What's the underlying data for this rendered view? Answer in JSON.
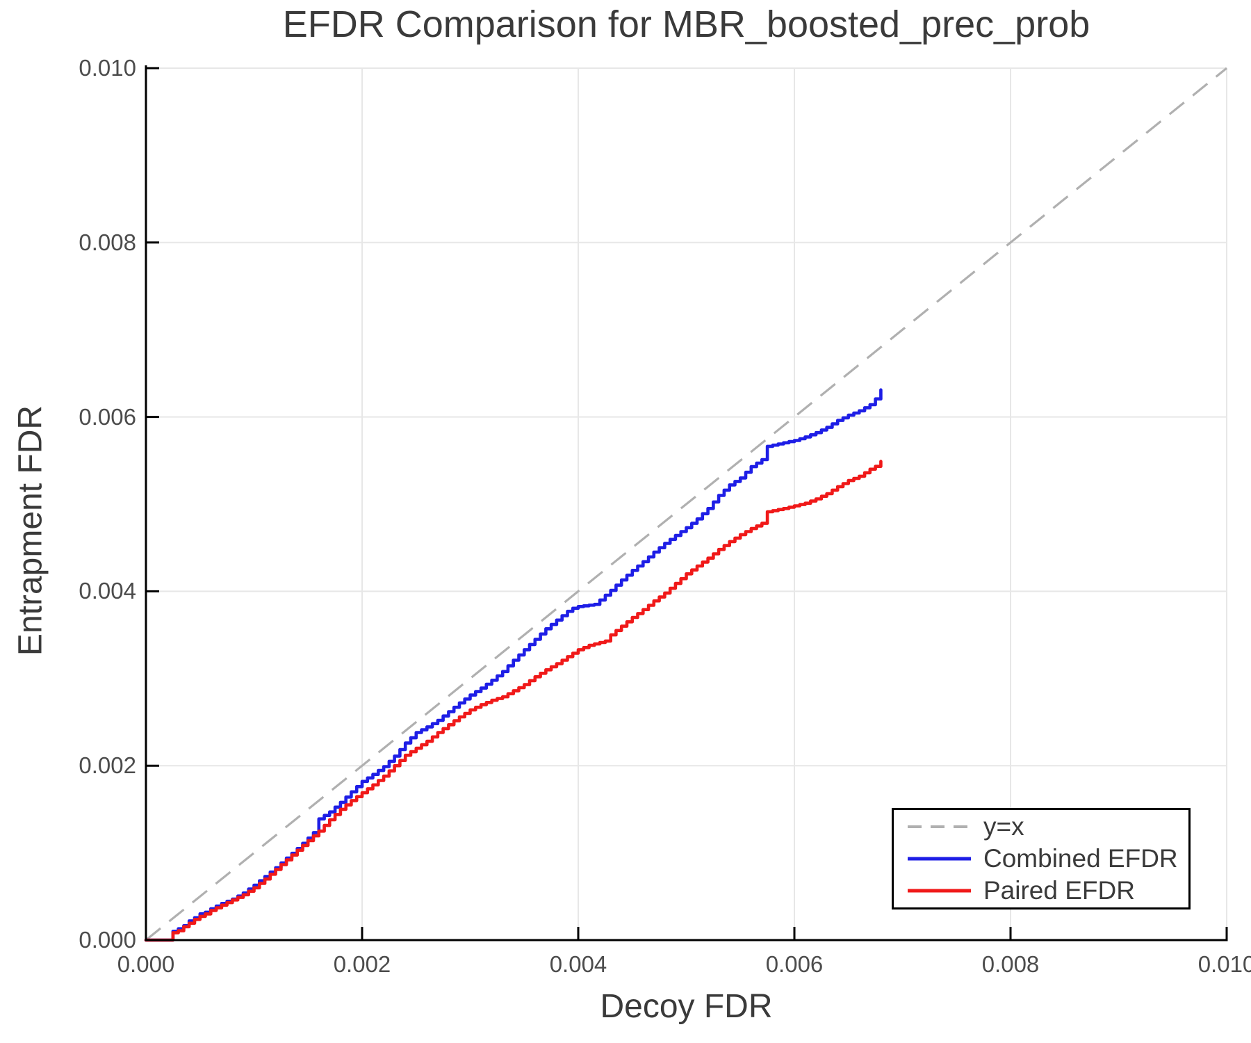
{
  "title": "EFDR Comparison for MBR_boosted_prec_prob",
  "chart_data": {
    "type": "line",
    "title": "EFDR Comparison for MBR_boosted_prec_prob",
    "xlabel": "Decoy FDR",
    "ylabel": "Entrapment FDR",
    "xlim": [
      0.0,
      0.01
    ],
    "ylim": [
      0.0,
      0.01
    ],
    "xticks": [
      "0.000",
      "0.002",
      "0.004",
      "0.006",
      "0.008",
      "0.010"
    ],
    "yticks": [
      "0.000",
      "0.002",
      "0.004",
      "0.006",
      "0.008",
      "0.010"
    ],
    "grid": true,
    "grid_color": "#e7e7e7",
    "spine_color": "#000000",
    "legend_position": "lower right",
    "reference_line": {
      "label": "y=x",
      "style": "dashed",
      "color": "#b0b0b0",
      "from": [
        0.0,
        0.0
      ],
      "to": [
        0.01,
        0.01
      ]
    },
    "series": [
      {
        "name": "Combined EFDR",
        "color": "#1e1ee6",
        "points": [
          [
            0.0,
            0.0
          ],
          [
            0.00021,
            0.0
          ],
          [
            0.00023,
            9e-05
          ],
          [
            0.0003,
            0.00013
          ],
          [
            0.00034,
            0.00013
          ],
          [
            0.00036,
            0.0002
          ],
          [
            0.00044,
            0.00024
          ],
          [
            0.00047,
            0.00029
          ],
          [
            0.00055,
            0.00032
          ],
          [
            0.0006,
            0.00036
          ],
          [
            0.0007,
            0.00042
          ],
          [
            0.0008,
            0.00047
          ],
          [
            0.0009,
            0.00054
          ],
          [
            0.001,
            0.00063
          ],
          [
            0.0011,
            0.00073
          ],
          [
            0.0012,
            0.00083
          ],
          [
            0.0013,
            0.00094
          ],
          [
            0.0014,
            0.00105
          ],
          [
            0.0015,
            0.00117
          ],
          [
            0.00158,
            0.00127
          ],
          [
            0.0016,
            0.00139
          ],
          [
            0.0017,
            0.00147
          ],
          [
            0.0018,
            0.00158
          ],
          [
            0.0019,
            0.0017
          ],
          [
            0.002,
            0.00182
          ],
          [
            0.0021,
            0.0019
          ],
          [
            0.0022,
            0.00199
          ],
          [
            0.0023,
            0.00211
          ],
          [
            0.0024,
            0.00226
          ],
          [
            0.0025,
            0.00238
          ],
          [
            0.00258,
            0.00243
          ],
          [
            0.0027,
            0.00252
          ],
          [
            0.0028,
            0.00262
          ],
          [
            0.0029,
            0.00272
          ],
          [
            0.003,
            0.00281
          ],
          [
            0.0031,
            0.00289
          ],
          [
            0.0032,
            0.00298
          ],
          [
            0.0033,
            0.00308
          ],
          [
            0.0034,
            0.00321
          ],
          [
            0.0035,
            0.00333
          ],
          [
            0.0036,
            0.00345
          ],
          [
            0.0037,
            0.00357
          ],
          [
            0.0038,
            0.00367
          ],
          [
            0.0039,
            0.00377
          ],
          [
            0.00397,
            0.00382
          ],
          [
            0.00415,
            0.00385
          ],
          [
            0.0042,
            0.0039
          ],
          [
            0.0043,
            0.00401
          ],
          [
            0.0044,
            0.00413
          ],
          [
            0.0045,
            0.00424
          ],
          [
            0.0046,
            0.00434
          ],
          [
            0.0047,
            0.00445
          ],
          [
            0.0048,
            0.00455
          ],
          [
            0.0049,
            0.00464
          ],
          [
            0.005,
            0.00473
          ],
          [
            0.0051,
            0.00483
          ],
          [
            0.0052,
            0.00495
          ],
          [
            0.0053,
            0.0051
          ],
          [
            0.0054,
            0.00522
          ],
          [
            0.0055,
            0.0053
          ],
          [
            0.0056,
            0.00543
          ],
          [
            0.0057,
            0.00551
          ],
          [
            0.00574,
            0.00566
          ],
          [
            0.00585,
            0.00569
          ],
          [
            0.006,
            0.00573
          ],
          [
            0.0061,
            0.00577
          ],
          [
            0.0062,
            0.00582
          ],
          [
            0.0063,
            0.00588
          ],
          [
            0.0064,
            0.00596
          ],
          [
            0.0065,
            0.00602
          ],
          [
            0.0066,
            0.00607
          ],
          [
            0.0067,
            0.00614
          ],
          [
            0.00676,
            0.00622
          ],
          [
            0.0068,
            0.00631
          ]
        ]
      },
      {
        "name": "Paired EFDR",
        "color": "#f01919",
        "points": [
          [
            0.0,
            0.0
          ],
          [
            0.00022,
            0.0
          ],
          [
            0.00024,
            8e-05
          ],
          [
            0.00033,
            0.00012
          ],
          [
            0.00036,
            0.00017
          ],
          [
            0.00043,
            0.00021
          ],
          [
            0.00046,
            0.00025
          ],
          [
            0.00055,
            0.0003
          ],
          [
            0.0006,
            0.00034
          ],
          [
            0.0007,
            0.0004
          ],
          [
            0.0008,
            0.00046
          ],
          [
            0.0009,
            0.00052
          ],
          [
            0.001,
            0.0006
          ],
          [
            0.0011,
            0.0007
          ],
          [
            0.0012,
            0.00081
          ],
          [
            0.0013,
            0.00092
          ],
          [
            0.0014,
            0.00103
          ],
          [
            0.0015,
            0.00114
          ],
          [
            0.0016,
            0.00125
          ],
          [
            0.0017,
            0.00138
          ],
          [
            0.0018,
            0.0015
          ],
          [
            0.0019,
            0.0016
          ],
          [
            0.002,
            0.00169
          ],
          [
            0.0021,
            0.00178
          ],
          [
            0.0022,
            0.00188
          ],
          [
            0.0023,
            0.002
          ],
          [
            0.0024,
            0.00212
          ],
          [
            0.0025,
            0.0022
          ],
          [
            0.0026,
            0.00228
          ],
          [
            0.0027,
            0.00238
          ],
          [
            0.0028,
            0.00247
          ],
          [
            0.0029,
            0.00256
          ],
          [
            0.003,
            0.00264
          ],
          [
            0.0031,
            0.0027
          ],
          [
            0.0032,
            0.00275
          ],
          [
            0.0033,
            0.00279
          ],
          [
            0.0034,
            0.00286
          ],
          [
            0.0035,
            0.00293
          ],
          [
            0.0036,
            0.00302
          ],
          [
            0.0037,
            0.0031
          ],
          [
            0.0038,
            0.00317
          ],
          [
            0.0039,
            0.00325
          ],
          [
            0.004,
            0.00333
          ],
          [
            0.0041,
            0.00338
          ],
          [
            0.00425,
            0.00343
          ],
          [
            0.0043,
            0.0035
          ],
          [
            0.0044,
            0.0036
          ],
          [
            0.0045,
            0.0037
          ],
          [
            0.0046,
            0.00379
          ],
          [
            0.0047,
            0.00389
          ],
          [
            0.0048,
            0.00398
          ],
          [
            0.0049,
            0.00409
          ],
          [
            0.005,
            0.0042
          ],
          [
            0.0051,
            0.00429
          ],
          [
            0.0052,
            0.00438
          ],
          [
            0.0053,
            0.00448
          ],
          [
            0.0054,
            0.00457
          ],
          [
            0.0055,
            0.00465
          ],
          [
            0.0056,
            0.00472
          ],
          [
            0.0057,
            0.00478
          ],
          [
            0.00574,
            0.00491
          ],
          [
            0.0059,
            0.00495
          ],
          [
            0.006,
            0.00498
          ],
          [
            0.0061,
            0.00501
          ],
          [
            0.0062,
            0.00506
          ],
          [
            0.0063,
            0.00512
          ],
          [
            0.0064,
            0.0052
          ],
          [
            0.0065,
            0.00527
          ],
          [
            0.0066,
            0.00532
          ],
          [
            0.0067,
            0.0054
          ],
          [
            0.00676,
            0.00544
          ],
          [
            0.0068,
            0.00549
          ]
        ]
      }
    ]
  }
}
